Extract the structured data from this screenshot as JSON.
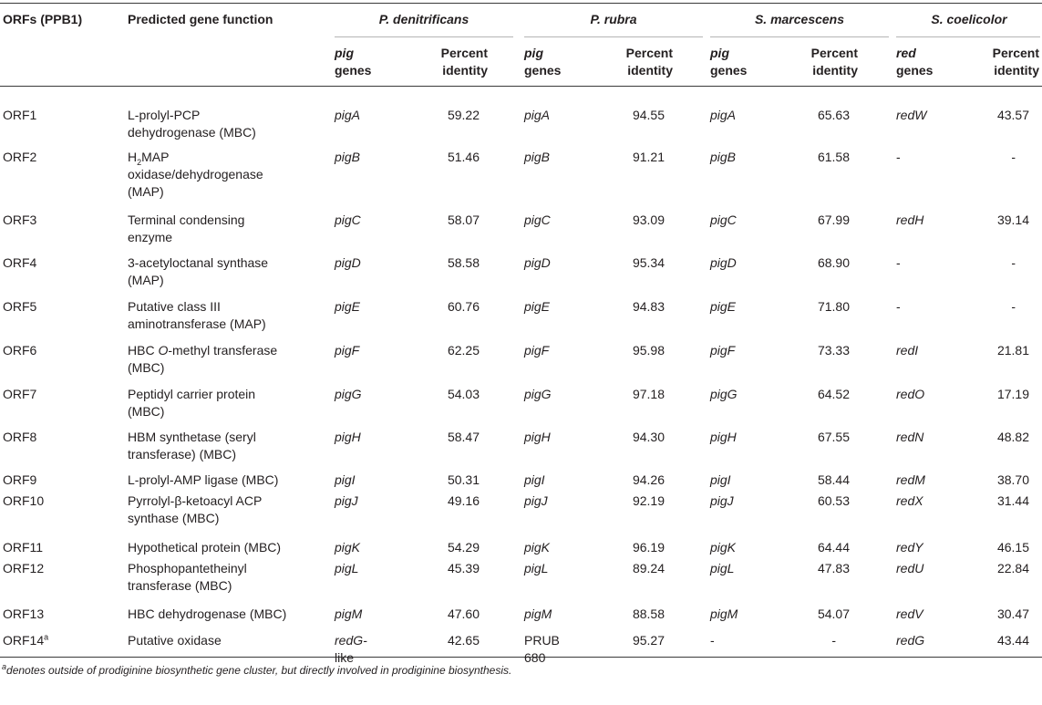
{
  "header": {
    "col_orf": "ORFs (PPB1)",
    "col_function": "Predicted gene function",
    "orgs": [
      "P. denitrificans",
      "P. rubra",
      "S. marcescens",
      "S. coelicolor"
    ],
    "sub_gene_pig": [
      "pig",
      "genes"
    ],
    "sub_gene_red": [
      "red",
      "genes"
    ],
    "sub_identity": [
      "Percent",
      "identity"
    ]
  },
  "rows": [
    {
      "orf": "ORF1",
      "func": [
        "L-prolyl-PCP",
        "dehydrogenase (MBC)"
      ],
      "pd_g": "pigA",
      "pd_p": "59.22",
      "pr_g": "pigA",
      "pr_p": "94.55",
      "sm_g": "pigA",
      "sm_p": "65.63",
      "sc_g": "redW",
      "sc_p": "43.57"
    },
    {
      "orf": "ORF2",
      "func": [
        "H2MAP",
        "oxidase/dehydrogenase",
        "(MAP)"
      ],
      "pd_g": "pigB",
      "pd_p": "51.46",
      "pr_g": "pigB",
      "pr_p": "91.21",
      "sm_g": "pigB",
      "sm_p": "61.58",
      "sc_g": "-",
      "sc_p": "-"
    },
    {
      "orf": "ORF3",
      "func": [
        "Terminal condensing",
        "enzyme"
      ],
      "pd_g": "pigC",
      "pd_p": "58.07",
      "pr_g": "pigC",
      "pr_p": "93.09",
      "sm_g": "pigC",
      "sm_p": "67.99",
      "sc_g": "redH",
      "sc_p": "39.14"
    },
    {
      "orf": "ORF4",
      "func": [
        "3-acetyloctanal synthase",
        "(MAP)"
      ],
      "pd_g": "pigD",
      "pd_p": "58.58",
      "pr_g": "pigD",
      "pr_p": "95.34",
      "sm_g": "pigD",
      "sm_p": "68.90",
      "sc_g": "-",
      "sc_p": "-"
    },
    {
      "orf": "ORF5",
      "func": [
        "Putative class III",
        "aminotransferase (MAP)"
      ],
      "pd_g": "pigE",
      "pd_p": "60.76",
      "pr_g": "pigE",
      "pr_p": "94.83",
      "sm_g": "pigE",
      "sm_p": "71.80",
      "sc_g": "-",
      "sc_p": "-"
    },
    {
      "orf": "ORF6",
      "func": [
        "HBC O-methyl transferase",
        "(MBC)"
      ],
      "pd_g": "pigF",
      "pd_p": "62.25",
      "pr_g": "pigF",
      "pr_p": "95.98",
      "sm_g": "pigF",
      "sm_p": "73.33",
      "sc_g": "redI",
      "sc_p": "21.81"
    },
    {
      "orf": "ORF7",
      "func": [
        "Peptidyl carrier protein",
        "(MBC)"
      ],
      "pd_g": "pigG",
      "pd_p": "54.03",
      "pr_g": "pigG",
      "pr_p": "97.18",
      "sm_g": "pigG",
      "sm_p": "64.52",
      "sc_g": "redO",
      "sc_p": "17.19"
    },
    {
      "orf": "ORF8",
      "func": [
        "HBM synthetase (seryl",
        "transferase) (MBC)"
      ],
      "pd_g": "pigH",
      "pd_p": "58.47",
      "pr_g": "pigH",
      "pr_p": "94.30",
      "sm_g": "pigH",
      "sm_p": "67.55",
      "sc_g": "redN",
      "sc_p": "48.82"
    },
    {
      "orf": "ORF9",
      "func": [
        "L-prolyl-AMP ligase (MBC)"
      ],
      "pd_g": "pigI",
      "pd_p": "50.31",
      "pr_g": "pigI",
      "pr_p": "94.26",
      "sm_g": "pigI",
      "sm_p": "58.44",
      "sc_g": "redM",
      "sc_p": "38.70"
    },
    {
      "orf": "ORF10",
      "func": [
        "Pyrrolyl-β-ketoacyl ACP",
        "synthase (MBC)"
      ],
      "pd_g": "pigJ",
      "pd_p": "49.16",
      "pr_g": "pigJ",
      "pr_p": "92.19",
      "sm_g": "pigJ",
      "sm_p": "60.53",
      "sc_g": "redX",
      "sc_p": "31.44"
    },
    {
      "orf": "ORF11",
      "func": [
        "Hypothetical protein (MBC)"
      ],
      "pd_g": "pigK",
      "pd_p": "54.29",
      "pr_g": "pigK",
      "pr_p": "96.19",
      "sm_g": "pigK",
      "sm_p": "64.44",
      "sc_g": "redY",
      "sc_p": "46.15"
    },
    {
      "orf": "ORF12",
      "func": [
        "Phosphopantetheinyl",
        "transferase (MBC)"
      ],
      "pd_g": "pigL",
      "pd_p": "45.39",
      "pr_g": "pigL",
      "pr_p": "89.24",
      "sm_g": "pigL",
      "sm_p": "47.83",
      "sc_g": "redU",
      "sc_p": "22.84"
    },
    {
      "orf": "ORF13",
      "func": [
        "HBC dehydrogenase (MBC)"
      ],
      "pd_g": "pigM",
      "pd_p": "47.60",
      "pr_g": "pigM",
      "pr_p": "88.58",
      "sm_g": "pigM",
      "sm_p": "54.07",
      "sc_g": "redV",
      "sc_p": "30.47"
    },
    {
      "orf": "ORF14",
      "orf_sup": "a",
      "func": [
        "Putative oxidase"
      ],
      "pd_g": "redG-",
      "pd_g2": "like",
      "pd_p": "42.65",
      "pr_g": "PRUB",
      "pr_g2": "680",
      "pr_p": "95.27",
      "sm_g": "-",
      "sm_p": "-",
      "sc_g": "redG",
      "sc_p": "43.44"
    }
  ],
  "footnote": {
    "marker": "a",
    "text": "denotes outside of prodiginine biosynthetic gene cluster, but directly involved in prodiginine biosynthesis."
  }
}
